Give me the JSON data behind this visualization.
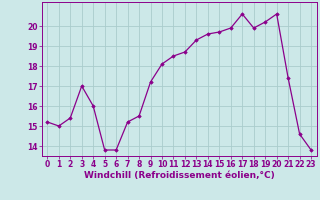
{
  "x": [
    0,
    1,
    2,
    3,
    4,
    5,
    6,
    7,
    8,
    9,
    10,
    11,
    12,
    13,
    14,
    15,
    16,
    17,
    18,
    19,
    20,
    21,
    22,
    23
  ],
  "y": [
    15.2,
    15.0,
    15.4,
    17.0,
    16.0,
    13.8,
    13.8,
    15.2,
    15.5,
    17.2,
    18.1,
    18.5,
    18.7,
    19.3,
    19.6,
    19.7,
    19.9,
    20.6,
    19.9,
    20.2,
    20.6,
    17.4,
    14.6,
    13.8
  ],
  "line_color": "#8B008B",
  "marker": "D",
  "markersize": 1.8,
  "linewidth": 0.9,
  "bg_color": "#cce8e8",
  "grid_color": "#aacccc",
  "xlabel": "Windchill (Refroidissement éolien,°C)",
  "xlabel_fontsize": 6.5,
  "tick_fontsize": 5.5,
  "ylim": [
    13.5,
    21.2
  ],
  "xlim": [
    -0.5,
    23.5
  ],
  "yticks": [
    14,
    15,
    16,
    17,
    18,
    19,
    20
  ],
  "xticks": [
    0,
    1,
    2,
    3,
    4,
    5,
    6,
    7,
    8,
    9,
    10,
    11,
    12,
    13,
    14,
    15,
    16,
    17,
    18,
    19,
    20,
    21,
    22,
    23
  ]
}
